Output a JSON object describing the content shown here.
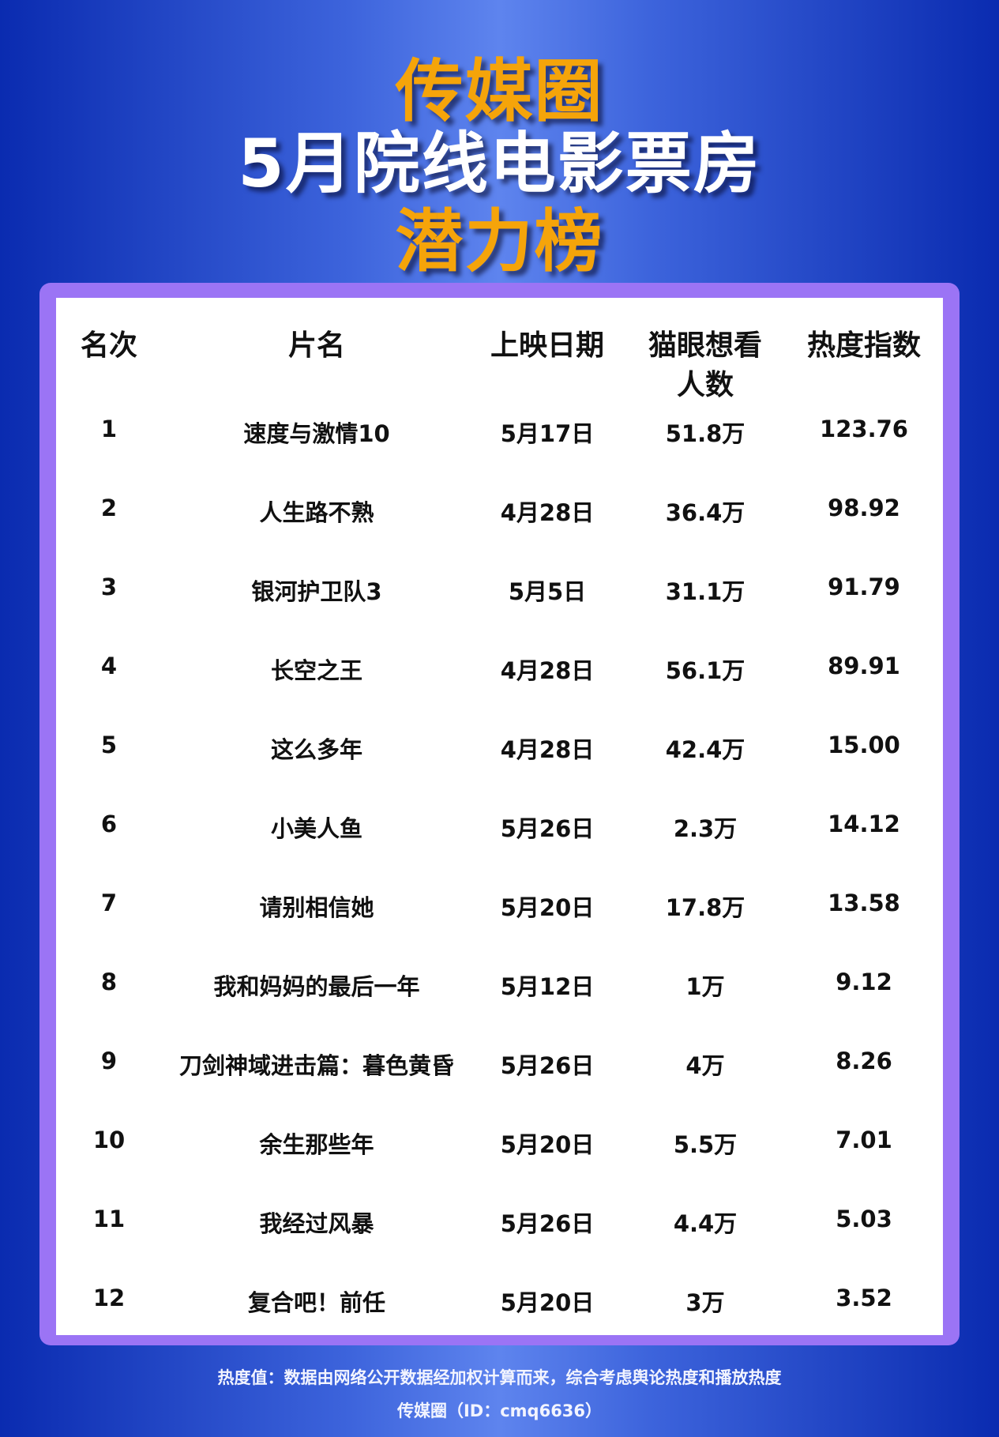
{
  "title": {
    "line1": "传媒圈",
    "line2": "5月院线电影票房",
    "line3": "潜力榜"
  },
  "colors": {
    "accent": "#f5a40a",
    "frame": "#9b74f5",
    "background": "#2f52d0"
  },
  "table": {
    "headers": [
      "名次",
      "片名",
      "上映日期",
      "猫眼想看",
      "热度指数"
    ],
    "header_line2": "人数",
    "rows": [
      [
        "1",
        "速度与激情10",
        "5月17日",
        "51.8万",
        "123.76"
      ],
      [
        "2",
        "人生路不熟",
        "4月28日",
        "36.4万",
        "98.92"
      ],
      [
        "3",
        "银河护卫队3",
        "5月5日",
        "31.1万",
        "91.79"
      ],
      [
        "4",
        "长空之王",
        "4月28日",
        "56.1万",
        "89.91"
      ],
      [
        "5",
        "这么多年",
        "4月28日",
        "42.4万",
        "15.00"
      ],
      [
        "6",
        "小美人鱼",
        "5月26日",
        "2.3万",
        "14.12"
      ],
      [
        "7",
        "请别相信她",
        "5月20日",
        "17.8万",
        "13.58"
      ],
      [
        "8",
        "我和妈妈的最后一年",
        "5月12日",
        "1万",
        "9.12"
      ],
      [
        "9",
        "刀剑神域进击篇：暮色黄昏",
        "5月26日",
        "4万",
        "8.26"
      ],
      [
        "10",
        "余生那些年",
        "5月20日",
        "5.5万",
        "7.01"
      ],
      [
        "11",
        "我经过风暴",
        "5月26日",
        "4.4万",
        "5.03"
      ],
      [
        "12",
        "复合吧！前任",
        "5月20日",
        "3万",
        "3.52"
      ]
    ]
  },
  "footer": {
    "note": "热度值：数据由网络公开数据经加权计算而来，综合考虑舆论热度和播放热度",
    "source": "传媒圈（ID：cmq6636）"
  }
}
